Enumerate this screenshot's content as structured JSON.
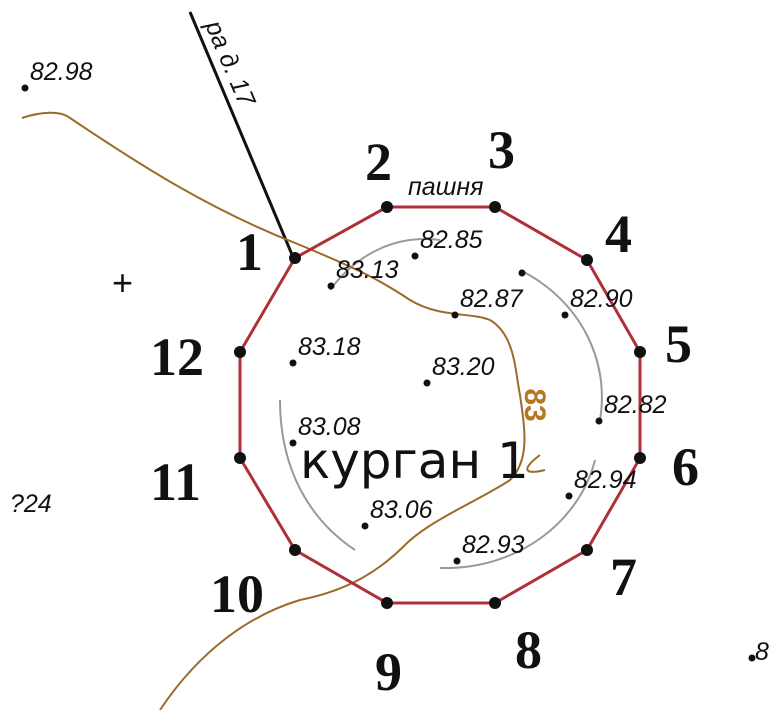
{
  "road_label": "ра д. 17",
  "land_label": "пашня",
  "mound_label": "курган 1",
  "contour_label": "83",
  "partial_left": "?24",
  "partial_right": ".8",
  "cross": "+",
  "vertices": [
    "1",
    "2",
    "3",
    "4",
    "5",
    "6",
    "7",
    "8",
    "9",
    "10",
    "11",
    "12"
  ],
  "elevations": [
    "82.98",
    "82.85",
    "83.13",
    "82.87",
    "82.90",
    "83.18",
    "83.20",
    "82.82",
    "83.08",
    "82.94",
    "83.06",
    "82.93"
  ]
}
